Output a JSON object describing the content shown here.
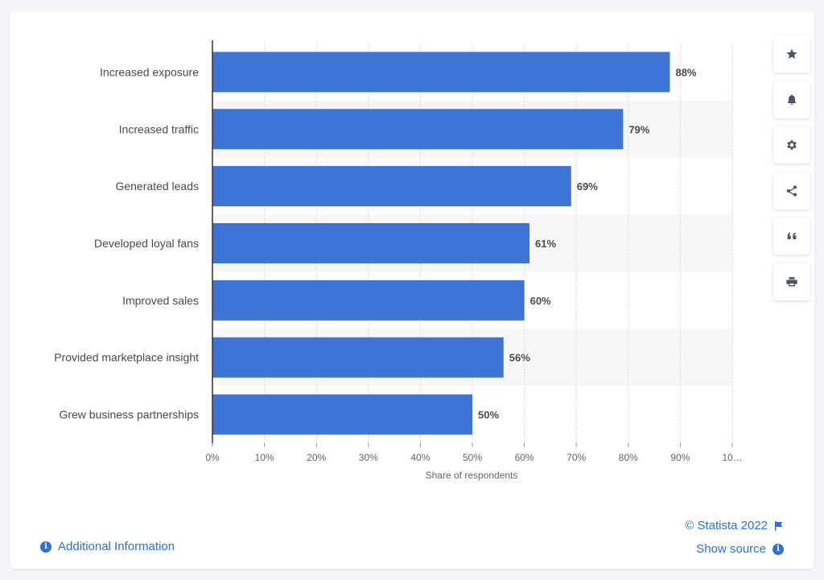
{
  "chart_data": {
    "type": "bar",
    "orientation": "horizontal",
    "categories": [
      "Increased exposure",
      "Increased traffic",
      "Generated leads",
      "Developed loyal fans",
      "Improved sales",
      "Provided marketplace insight",
      "Grew business partnerships"
    ],
    "values": [
      88,
      79,
      69,
      61,
      60,
      56,
      50
    ],
    "value_labels": [
      "88%",
      "79%",
      "69%",
      "61%",
      "60%",
      "56%",
      "50%"
    ],
    "xlabel": "Share of respondents",
    "xlim": [
      0,
      100
    ],
    "x_ticks": [
      "0%",
      "10%",
      "20%",
      "30%",
      "40%",
      "50%",
      "60%",
      "70%",
      "80%",
      "90%",
      "10…"
    ],
    "grid": true,
    "bar_color": "#3e74d6"
  },
  "toolbar": {
    "icons": [
      "star-icon",
      "bell-icon",
      "gear-icon",
      "share-icon",
      "quote-icon",
      "print-icon"
    ]
  },
  "footer": {
    "additional_info": "Additional Information",
    "credit": "© Statista 2022",
    "show_source": "Show source",
    "info_glyph": "i"
  },
  "colors": {
    "accent": "#2f6fd6",
    "bar": "#3e74d6",
    "band": "#f7f7f7"
  }
}
